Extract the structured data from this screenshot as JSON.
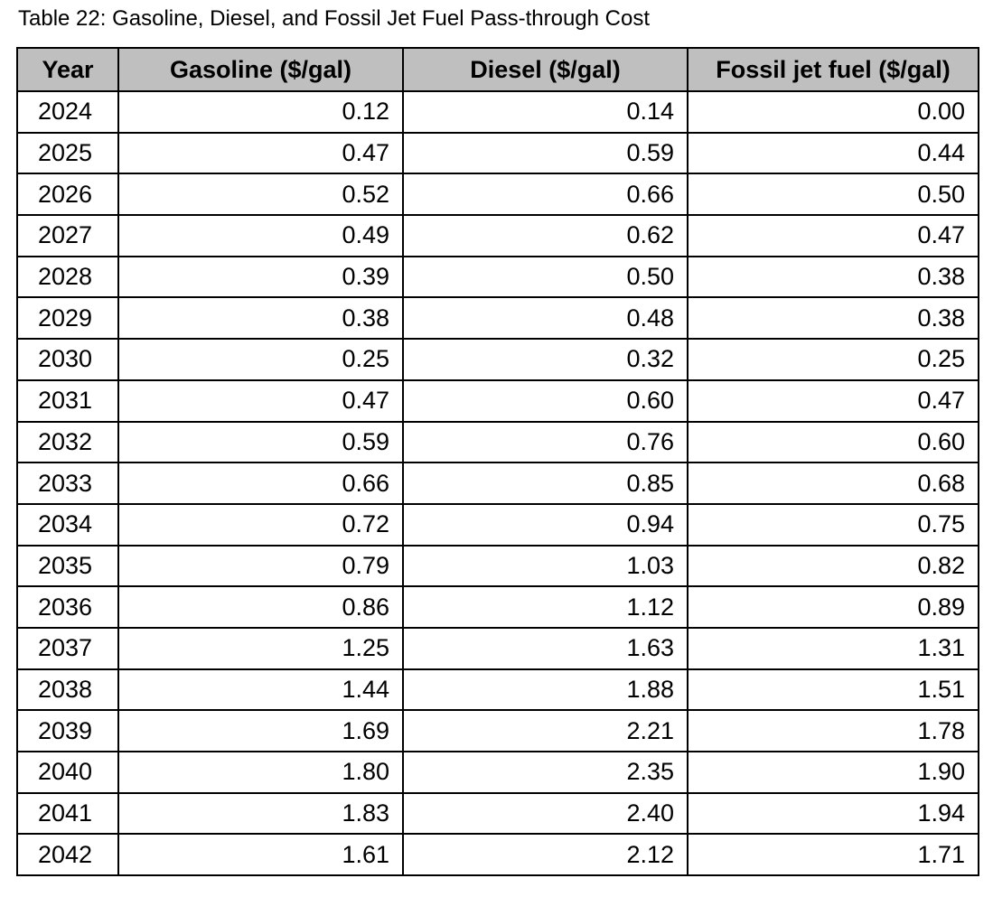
{
  "caption": "Table 22: Gasoline, Diesel, and Fossil Jet Fuel Pass-through Cost",
  "header_bg": "#bfbfbf",
  "columns": [
    "Year",
    "Gasoline ($/gal)",
    "Diesel ($/gal)",
    "Fossil jet fuel ($/gal)"
  ],
  "rows": [
    [
      "2024",
      "0.12",
      "0.14",
      "0.00"
    ],
    [
      "2025",
      "0.47",
      "0.59",
      "0.44"
    ],
    [
      "2026",
      "0.52",
      "0.66",
      "0.50"
    ],
    [
      "2027",
      "0.49",
      "0.62",
      "0.47"
    ],
    [
      "2028",
      "0.39",
      "0.50",
      "0.38"
    ],
    [
      "2029",
      "0.38",
      "0.48",
      "0.38"
    ],
    [
      "2030",
      "0.25",
      "0.32",
      "0.25"
    ],
    [
      "2031",
      "0.47",
      "0.60",
      "0.47"
    ],
    [
      "2032",
      "0.59",
      "0.76",
      "0.60"
    ],
    [
      "2033",
      "0.66",
      "0.85",
      "0.68"
    ],
    [
      "2034",
      "0.72",
      "0.94",
      "0.75"
    ],
    [
      "2035",
      "0.79",
      "1.03",
      "0.82"
    ],
    [
      "2036",
      "0.86",
      "1.12",
      "0.89"
    ],
    [
      "2037",
      "1.25",
      "1.63",
      "1.31"
    ],
    [
      "2038",
      "1.44",
      "1.88",
      "1.51"
    ],
    [
      "2039",
      "1.69",
      "2.21",
      "1.78"
    ],
    [
      "2040",
      "1.80",
      "2.35",
      "1.90"
    ],
    [
      "2041",
      "1.83",
      "2.40",
      "1.94"
    ],
    [
      "2042",
      "1.61",
      "2.12",
      "1.71"
    ]
  ]
}
